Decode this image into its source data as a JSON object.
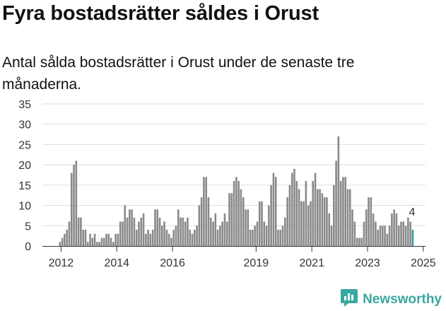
{
  "title": "Fyra bostadsrätter såldes i Orust",
  "subtitle": "Antal sålda bostadsrätter i Orust under de senaste tre månaderna.",
  "brand": {
    "name": "Newsworthy",
    "icon": "newsworthy-logo-icon",
    "color": "#3aa7a0"
  },
  "colors": {
    "bar": "#888888",
    "highlight": "#2a9d9a"
  },
  "chart_data": {
    "type": "bar",
    "title": "Fyra bostadsrätter såldes i Orust",
    "subtitle": "Antal sålda bostadsrätter i Orust under de senaste tre månaderna.",
    "xlabel": "",
    "ylabel": "",
    "ylim": [
      0,
      35
    ],
    "yticks": [
      0,
      5,
      10,
      15,
      20,
      25,
      30,
      35
    ],
    "xticks": [
      "2012",
      "2014",
      "2016",
      "2019",
      "2021",
      "2023",
      "2025"
    ],
    "xlim": [
      2011.33,
      2025.08
    ],
    "grid": true,
    "start": 2011.96,
    "step": 0.0833,
    "values": [
      1,
      2,
      3,
      4,
      6,
      18,
      20,
      21,
      7,
      7,
      4,
      4,
      1,
      3,
      2,
      3,
      1,
      1,
      2,
      2,
      3,
      3,
      2,
      1,
      3,
      3,
      6,
      6,
      10,
      7,
      9,
      9,
      7,
      4,
      6,
      7,
      8,
      3,
      4,
      3,
      4,
      9,
      9,
      7,
      5,
      6,
      4,
      3,
      2,
      4,
      5,
      9,
      7,
      7,
      6,
      7,
      4,
      3,
      4,
      5,
      10,
      12,
      17,
      17,
      12,
      7,
      6,
      8,
      4,
      5,
      6,
      8,
      6,
      13,
      13,
      16,
      17,
      16,
      14,
      12,
      9,
      9,
      4,
      4,
      5,
      6,
      11,
      11,
      6,
      5,
      10,
      15,
      18,
      17,
      4,
      4,
      5,
      7,
      12,
      15,
      18,
      19,
      16,
      14,
      11,
      11,
      16,
      10,
      11,
      16,
      18,
      14,
      14,
      13,
      12,
      12,
      8,
      5,
      15,
      21,
      27,
      16,
      17,
      17,
      14,
      14,
      9,
      6,
      2,
      2,
      2,
      6,
      9,
      12,
      12,
      8,
      6,
      4,
      5,
      5,
      5,
      3,
      5,
      8,
      9,
      8,
      5,
      6,
      6,
      5,
      7,
      6,
      4
    ],
    "highlight": {
      "index": 152,
      "value": 4,
      "label": "4"
    }
  }
}
